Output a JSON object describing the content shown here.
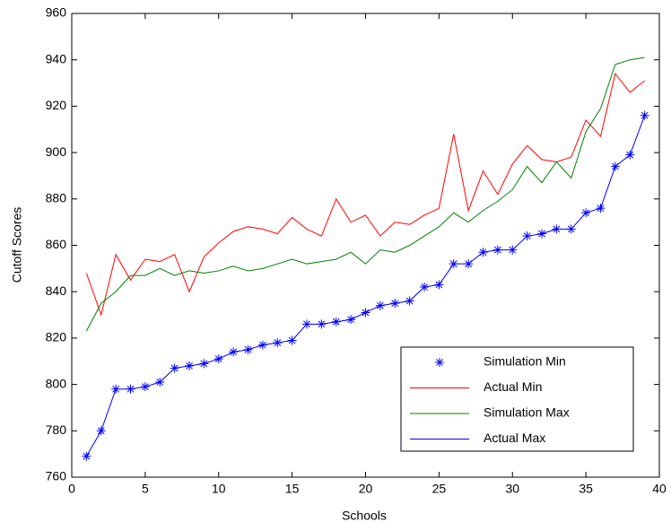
{
  "chart_data": {
    "type": "line",
    "xlabel": "Schools",
    "ylabel": "Cutoff Scores",
    "x": [
      1,
      2,
      3,
      4,
      5,
      6,
      7,
      8,
      9,
      10,
      11,
      12,
      13,
      14,
      15,
      16,
      17,
      18,
      19,
      20,
      21,
      22,
      23,
      24,
      25,
      26,
      27,
      28,
      29,
      30,
      31,
      32,
      33,
      34,
      35,
      36,
      37,
      38,
      39
    ],
    "series": [
      {
        "name": "Simulation Min",
        "color": "#0000ff",
        "marker": "asterisk",
        "line": false,
        "values": [
          769,
          780,
          798,
          798,
          799,
          801,
          807,
          808,
          809,
          811,
          814,
          815,
          817,
          818,
          819,
          826,
          826,
          827,
          828,
          831,
          834,
          835,
          836,
          842,
          843,
          852,
          852,
          857,
          858,
          858,
          864,
          865,
          867,
          867,
          874,
          876,
          894,
          899,
          916
        ]
      },
      {
        "name": "Actual Min",
        "color": "#ff0000",
        "marker": null,
        "line": true,
        "values": [
          848,
          830,
          856,
          845,
          854,
          853,
          856,
          840,
          855,
          861,
          866,
          868,
          867,
          865,
          872,
          867,
          864,
          880,
          870,
          873,
          864,
          870,
          869,
          873,
          876,
          908,
          875,
          892,
          882,
          895,
          903,
          897,
          896,
          898,
          914,
          907,
          934,
          926,
          931
        ]
      },
      {
        "name": "Simulation Max",
        "color": "#008000",
        "marker": null,
        "line": true,
        "values": [
          823,
          835,
          840,
          847,
          847,
          850,
          847,
          849,
          848,
          849,
          851,
          849,
          850,
          852,
          854,
          852,
          853,
          854,
          857,
          852,
          858,
          857,
          860,
          864,
          868,
          874,
          870,
          875,
          879,
          884,
          894,
          887,
          896,
          889,
          909,
          919,
          938,
          940,
          941
        ]
      },
      {
        "name": "Actual Max",
        "color": "#0000ff",
        "marker": null,
        "line": true,
        "values": [
          769,
          780,
          798,
          798,
          799,
          801,
          807,
          808,
          809,
          811,
          814,
          815,
          817,
          818,
          819,
          826,
          826,
          827,
          828,
          831,
          834,
          835,
          836,
          842,
          843,
          852,
          852,
          857,
          858,
          858,
          864,
          865,
          867,
          867,
          874,
          876,
          894,
          899,
          916
        ]
      }
    ],
    "xlim": [
      0,
      40
    ],
    "xticks": [
      0,
      5,
      10,
      15,
      20,
      25,
      30,
      35,
      40
    ],
    "ylim": [
      760,
      960
    ],
    "yticks": [
      760,
      780,
      800,
      820,
      840,
      860,
      880,
      900,
      920,
      940,
      960
    ],
    "grid": false,
    "legend": "lower right"
  }
}
